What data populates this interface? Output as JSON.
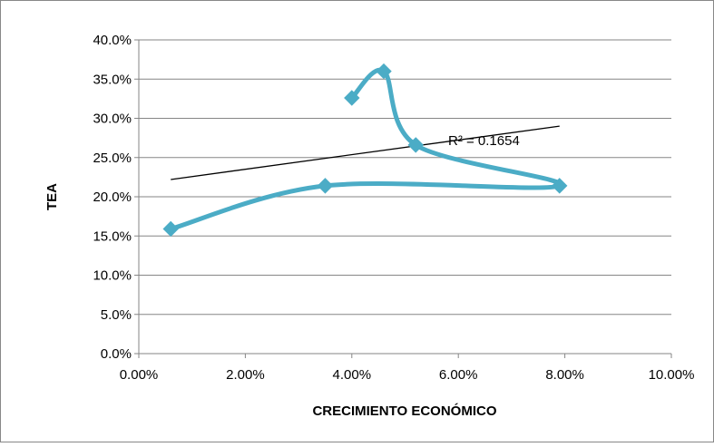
{
  "chart_data": {
    "type": "scatter",
    "title": "",
    "xlabel": "CRECIMIENTO ECONÓMICO",
    "ylabel": "TEA",
    "xlim": [
      0,
      0.1
    ],
    "ylim": [
      0,
      0.4
    ],
    "x_ticks": [
      "0.00%",
      "2.00%",
      "4.00%",
      "6.00%",
      "8.00%",
      "10.00%"
    ],
    "y_ticks": [
      "0.0%",
      "5.0%",
      "10.0%",
      "15.0%",
      "20.0%",
      "25.0%",
      "30.0%",
      "35.0%",
      "40.0%"
    ],
    "grid": "horizontal",
    "legend": "none",
    "series": [
      {
        "color": "#4bacc6",
        "marker": "diamond",
        "line": "smooth",
        "points": [
          {
            "x": 0.04,
            "y": 0.326
          },
          {
            "x": 0.046,
            "y": 0.36
          },
          {
            "x": 0.052,
            "y": 0.266
          },
          {
            "x": 0.079,
            "y": 0.214
          },
          {
            "x": 0.035,
            "y": 0.214
          },
          {
            "x": 0.006,
            "y": 0.159
          }
        ]
      }
    ],
    "trendline": {
      "type": "linear",
      "color": "#000000",
      "x_range": [
        0.006,
        0.079
      ],
      "y_at_start": 0.222,
      "y_at_end": 0.29,
      "label": "R² = 0.1654"
    }
  }
}
